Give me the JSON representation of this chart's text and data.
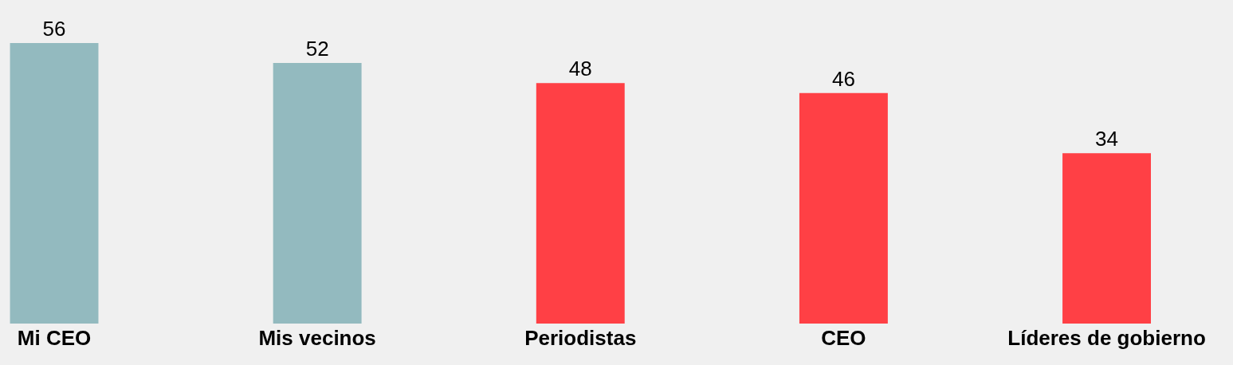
{
  "chart_data": {
    "type": "bar",
    "categories": [
      "Mi CEO",
      "Mis vecinos",
      "Periodistas",
      "CEO",
      "Líderes de gobierno"
    ],
    "values": [
      56,
      52,
      48,
      46,
      34
    ],
    "colors": [
      "#93babf",
      "#93babf",
      "#ff4045",
      "#ff4045",
      "#ff4045"
    ],
    "data_labels": true,
    "grid": false,
    "tick_labels": "x"
  }
}
